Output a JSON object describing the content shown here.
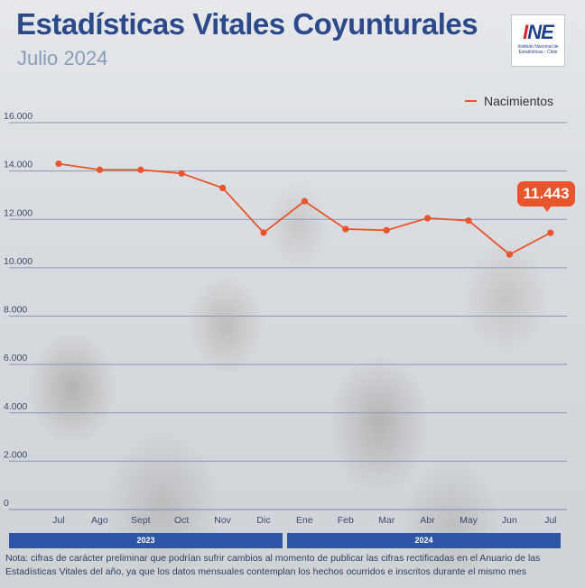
{
  "title": "Estadísticas Vitales Coyunturales",
  "subtitle": "Julio 2024",
  "logo": {
    "mark_left": "I",
    "mark_right": "NE",
    "text": "Instituto Nacional de Estadísticas - Chile"
  },
  "year_labels": [
    "2023",
    "2024"
  ],
  "note": "Nota: cifras de carácter preliminar que podrían sufrir cambios al momento de publicar las cifras rectificadas en el Anuario de las Estadísticas Vitales del año, ya que los datos mensuales contemplan los hechos ocurridos e inscritos durante el mismo mes",
  "callout_label": "11.443",
  "colors": {
    "series": "#e8552c",
    "grid": "#8b97b3",
    "bar": "#2f56a6"
  },
  "chart_data": {
    "type": "line",
    "categories": [
      "Jul",
      "Ago",
      "Sept",
      "Oct",
      "Nov",
      "Dic",
      "Ene",
      "Feb",
      "Mar",
      "Abr",
      "May",
      "Jun",
      "Jul"
    ],
    "series": [
      {
        "name": "Nacimientos",
        "values": [
          14300,
          14050,
          14050,
          13900,
          13300,
          11450,
          12750,
          11600,
          11550,
          12050,
          11950,
          10550,
          11443
        ]
      }
    ],
    "y_ticks": [
      "0",
      "2.000",
      "4.000",
      "6.000",
      "8.000",
      "10.000",
      "12.000",
      "14.000",
      "16.000"
    ],
    "y_tick_values": [
      0,
      2000,
      4000,
      6000,
      8000,
      10000,
      12000,
      14000,
      16000
    ],
    "ylim": [
      0,
      16000
    ],
    "legend_position": "top-right",
    "grid": true
  }
}
